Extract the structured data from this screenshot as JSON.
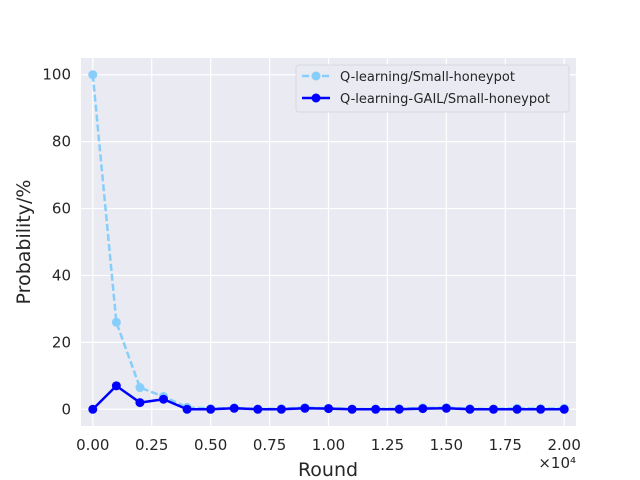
{
  "chart_data": {
    "type": "line",
    "xlabel": "Round",
    "ylabel": "Probability/%",
    "x_scale_label": "×10⁴",
    "xlim": [
      -0.05,
      2.05
    ],
    "ylim": [
      -5,
      105
    ],
    "x_ticks": [
      0.0,
      0.25,
      0.5,
      0.75,
      1.0,
      1.25,
      1.5,
      1.75,
      2.0
    ],
    "x_tick_labels": [
      "0.00",
      "0.25",
      "0.50",
      "0.75",
      "1.00",
      "1.25",
      "1.50",
      "1.75",
      "2.00"
    ],
    "y_ticks": [
      0,
      20,
      40,
      60,
      80,
      100
    ],
    "y_tick_labels": [
      "0",
      "20",
      "40",
      "60",
      "80",
      "100"
    ],
    "grid": true,
    "legend_position": "top-right",
    "x": [
      0.0,
      0.1,
      0.2,
      0.3,
      0.4,
      0.5,
      0.6,
      0.7,
      0.8,
      0.9,
      1.0,
      1.1,
      1.2,
      1.3,
      1.4,
      1.5,
      1.6,
      1.7,
      1.8,
      1.9,
      2.0
    ],
    "series": [
      {
        "name": "Q-learning/Small-honeypot",
        "color": "#87CEFA",
        "line_style": "dashed",
        "values": [
          100,
          26,
          6.5,
          3.8,
          0.6,
          0.2,
          0.4,
          0.1,
          0.2,
          0.5,
          0.3,
          0.1,
          0.1,
          0.2,
          0.4,
          0.5,
          0.2,
          0.1,
          0.3,
          0.2,
          0.3
        ]
      },
      {
        "name": "Q-learning-GAIL/Small-honeypot",
        "color": "#0000FF",
        "line_style": "solid",
        "values": [
          0,
          7,
          2,
          3,
          0,
          0,
          0.3,
          0,
          0,
          0.3,
          0.2,
          0,
          0,
          0,
          0.2,
          0.3,
          0,
          0,
          0,
          0,
          0
        ]
      }
    ]
  }
}
